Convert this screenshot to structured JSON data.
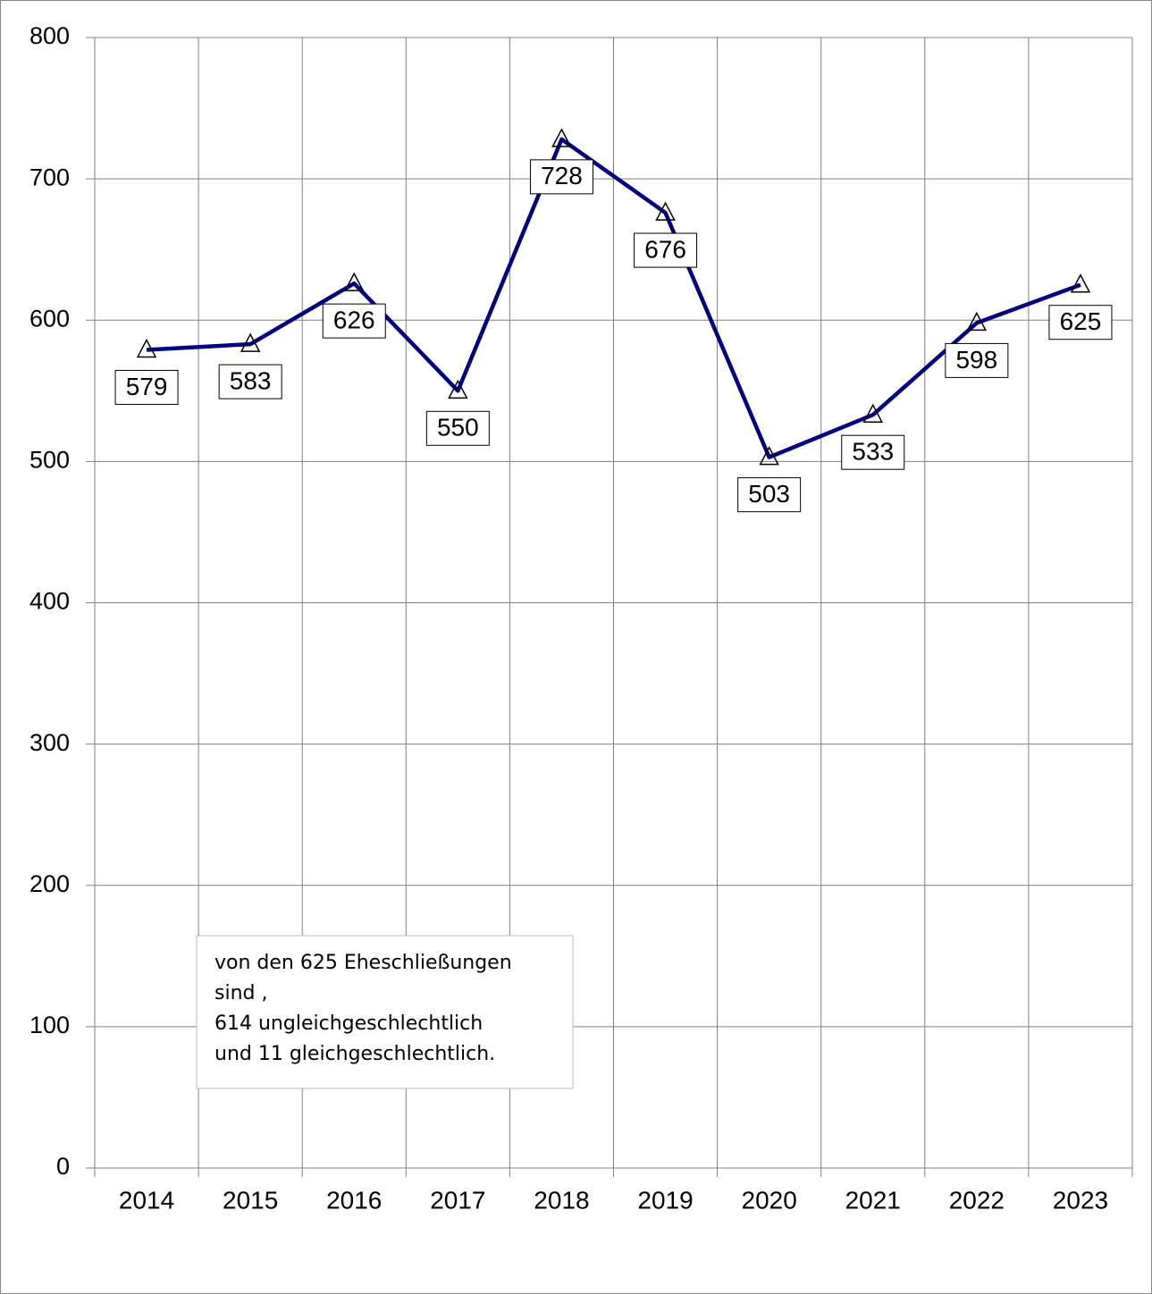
{
  "chart_data": {
    "type": "line",
    "categories": [
      "2014",
      "2015",
      "2016",
      "2017",
      "2018",
      "2019",
      "2020",
      "2021",
      "2022",
      "2023"
    ],
    "series": [
      {
        "color": "#000080",
        "values": [
          579,
          583,
          626,
          550,
          728,
          676,
          503,
          533,
          598,
          625
        ]
      }
    ],
    "ylim": [
      0,
      800
    ],
    "yticks": [
      0,
      100,
      200,
      300,
      400,
      500,
      600,
      700,
      800
    ],
    "grid": true,
    "annotation": [
      "von den 625 Eheschließungen",
      "sind ,",
      "614 ungleichgeschlechtlich",
      "und 11 gleichgeschlechtlich."
    ]
  }
}
